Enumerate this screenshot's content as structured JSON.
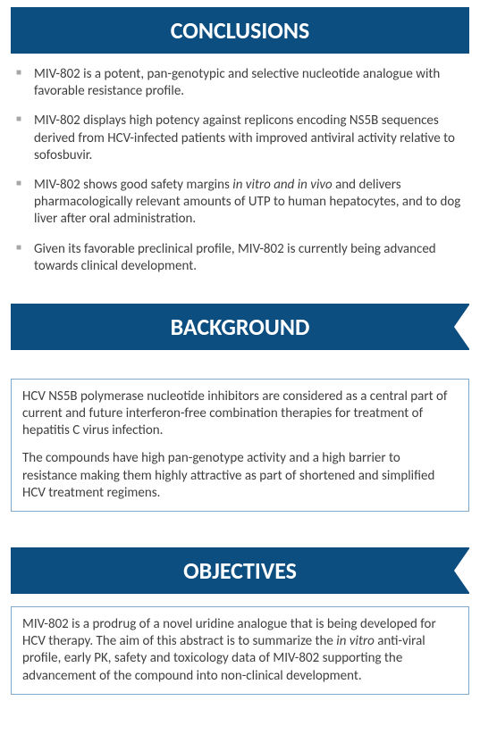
{
  "sections": {
    "conclusions": {
      "title": "CONCLUSIONS",
      "bullets": [
        "MIV-802 is a potent, pan-genotypic and selective nucleotide analogue with favorable resistance profile.",
        "MIV-802 displays high potency against replicons encoding NS5B sequences derived from HCV-infected patients  with improved antiviral activity relative to sofosbuvir.",
        "MIV-802 shows good safety margins <em>in vitro and in vivo</em> and delivers pharmacologically relevant amounts of UTP to human hepatocytes, and to dog liver after oral administration.",
        "Given its favorable preclinical profile, MIV-802 is currently being advanced towards clinical development."
      ]
    },
    "background": {
      "title": "BACKGROUND",
      "paragraphs": [
        "HCV NS5B polymerase nucleotide inhibitors are considered as a central part of current and future interferon-free combination therapies for treatment of hepatitis C virus infection.",
        "The compounds have  high pan-genotype activity and a high barrier to resistance making them highly attractive  as part of shortened and simplified HCV treatment regimens."
      ]
    },
    "objectives": {
      "title": "OBJECTIVES",
      "paragraphs": [
        "MIV-802 is a prodrug of a novel uridine analogue that is being developed for HCV therapy.  The aim of this abstract is to summarize the <em>in vitro</em> anti-viral profile, early PK, safety and toxicology data of  MIV-802 supporting the advancement of the compound into non-clinical development."
      ]
    }
  },
  "style": {
    "header_bg": "#0d4e80",
    "header_fg": "#ffffff",
    "header_fontsize": 26,
    "body_fontsize": 15,
    "bullet_color": "#a6a6a6",
    "box_border": "#7fa9cc",
    "text_color": "#3f3f3f",
    "page_bg": "#ffffff"
  }
}
